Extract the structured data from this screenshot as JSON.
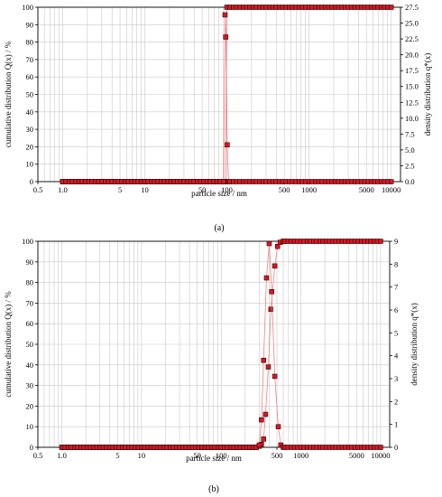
{
  "chart_data": [
    {
      "type": "scatter",
      "panel_label": "(a)",
      "xlabel": "particle size / nm",
      "ylabel_left": "cumulative distribution Q(x) / %",
      "ylabel_right": "density distribution q*(x)",
      "x_scale": "log",
      "xlim": [
        0.5,
        13000
      ],
      "ylim_left": [
        0,
        100
      ],
      "ylim_right": [
        0,
        27.5
      ],
      "x_tick_labels": [
        {
          "value": 0.5,
          "label": "0.5"
        },
        {
          "value": 1,
          "label": "1.0"
        },
        {
          "value": 5,
          "label": "5"
        },
        {
          "value": 10,
          "label": "10"
        },
        {
          "value": 50,
          "label": "50"
        },
        {
          "value": 100,
          "label": "100"
        },
        {
          "value": 500,
          "label": "500"
        },
        {
          "value": 1000,
          "label": "1000"
        },
        {
          "value": 5000,
          "label": "5000"
        },
        {
          "value": 10000,
          "label": "10000"
        }
      ],
      "y_left_ticks": [
        "0",
        "10",
        "20",
        "30",
        "40",
        "50",
        "60",
        "70",
        "80",
        "90",
        "100"
      ],
      "y_right_ticks": [
        "0.0",
        "2.5",
        "5.0",
        "7.5",
        "10.0",
        "12.5",
        "15.0",
        "17.5",
        "20.0",
        "22.5",
        "25.0",
        "27.5"
      ],
      "grid": true,
      "marker_color": "#e0141e",
      "line_color": "#f08080",
      "series": [
        {
          "role": "cumulative",
          "x_range": [
            1,
            10000
          ],
          "steps": 100,
          "jump_points": [
            {
              "x": 96,
              "y": 0
            },
            {
              "x": 100,
              "y": 100
            }
          ]
        },
        {
          "role": "density",
          "x_range": [
            1,
            10000
          ],
          "steps": 100,
          "peak_points": [
            {
              "x": 91,
              "y": 0
            },
            {
              "x": 95,
              "y": 26.3
            },
            {
              "x": 97,
              "y": 22.8
            },
            {
              "x": 101,
              "y": 5.8
            },
            {
              "x": 105,
              "y": 0
            }
          ]
        }
      ]
    },
    {
      "type": "scatter",
      "panel_label": "(b)",
      "xlabel": "particle size / nm",
      "ylabel_left": "cumulative distribution Q(x) / %",
      "ylabel_right": "density distribution q*(x)",
      "x_scale": "log",
      "xlim": [
        0.5,
        13000
      ],
      "ylim_left": [
        0,
        100
      ],
      "ylim_right": [
        0,
        9
      ],
      "x_tick_labels": [
        {
          "value": 0.5,
          "label": "0.5"
        },
        {
          "value": 1,
          "label": "1.0"
        },
        {
          "value": 5,
          "label": "5"
        },
        {
          "value": 10,
          "label": "10"
        },
        {
          "value": 50,
          "label": "50"
        },
        {
          "value": 100,
          "label": "100"
        },
        {
          "value": 500,
          "label": "500"
        },
        {
          "value": 1000,
          "label": "1000"
        },
        {
          "value": 5000,
          "label": "5000"
        },
        {
          "value": 10000,
          "label": "10000"
        }
      ],
      "y_left_ticks": [
        "0",
        "10",
        "20",
        "30",
        "40",
        "50",
        "60",
        "70",
        "80",
        "90",
        "100"
      ],
      "y_right_ticks": [
        "0",
        "1",
        "2",
        "3",
        "4",
        "5",
        "6",
        "7",
        "8",
        "9"
      ],
      "grid": true,
      "marker_color": "#e0141e",
      "line_color": "#f08080",
      "series": [
        {
          "role": "cumulative",
          "x_range": [
            1,
            10000
          ],
          "steps": 100,
          "jump_points": [
            {
              "x": 300,
              "y": 0.5
            },
            {
              "x": 320,
              "y": 1.5
            },
            {
              "x": 340,
              "y": 4
            },
            {
              "x": 360,
              "y": 16
            },
            {
              "x": 390,
              "y": 39
            },
            {
              "x": 420,
              "y": 67
            },
            {
              "x": 470,
              "y": 88
            },
            {
              "x": 510,
              "y": 97.5
            },
            {
              "x": 550,
              "y": 99.5
            },
            {
              "x": 600,
              "y": 100
            }
          ]
        },
        {
          "role": "density",
          "x_range": [
            1,
            10000
          ],
          "steps": 100,
          "peak_points": [
            {
              "x": 300,
              "y": 0.1
            },
            {
              "x": 320,
              "y": 1.2
            },
            {
              "x": 340,
              "y": 3.8
            },
            {
              "x": 370,
              "y": 7.4
            },
            {
              "x": 400,
              "y": 8.9
            },
            {
              "x": 430,
              "y": 6.8
            },
            {
              "x": 470,
              "y": 3.1
            },
            {
              "x": 520,
              "y": 0.9
            },
            {
              "x": 560,
              "y": 0.1
            },
            {
              "x": 600,
              "y": 0
            }
          ]
        }
      ]
    }
  ]
}
